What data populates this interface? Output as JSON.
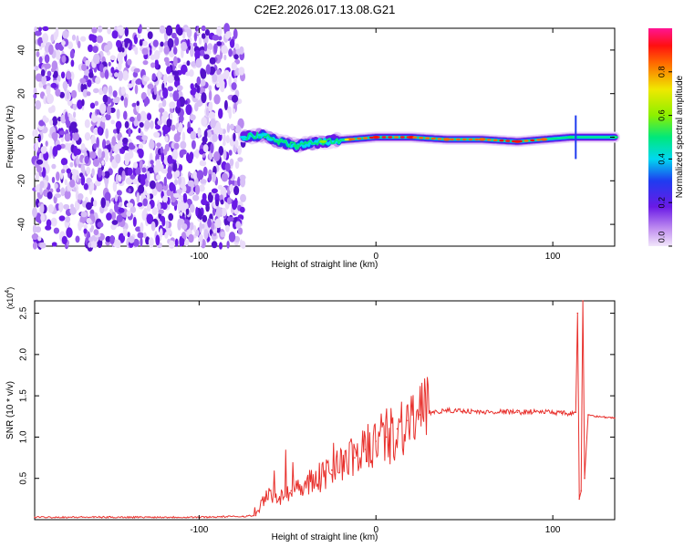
{
  "figure_title": "C2E2.2026.017.13.08.G21",
  "chart_data": [
    {
      "type": "heatmap",
      "xlabel": "Height of straight line (km)",
      "ylabel": "Frequency (Hz)",
      "xlim": [
        -193,
        135
      ],
      "ylim": [
        -50,
        50
      ],
      "x_ticks": [
        -100,
        0,
        100
      ],
      "y_ticks": [
        -40,
        -20,
        0,
        20,
        40
      ],
      "colorbar": {
        "label": "Normalized spectral amplitude",
        "range": [
          0,
          1
        ],
        "ticks": [
          0.0,
          0.2,
          0.4,
          0.6,
          0.8
        ],
        "tick_labels": [
          "0.0",
          "0.2",
          "0.4",
          "0.6",
          "0.8"
        ]
      },
      "noise_region_x": [
        -193,
        -75
      ],
      "carrier_track": [
        {
          "x": -75,
          "freq": 0,
          "amp": 0.35
        },
        {
          "x": -65,
          "freq": 1,
          "amp": 0.4
        },
        {
          "x": -55,
          "freq": -2,
          "amp": 0.45
        },
        {
          "x": -45,
          "freq": -4,
          "amp": 0.5
        },
        {
          "x": -30,
          "freq": -2,
          "amp": 0.6
        },
        {
          "x": -15,
          "freq": -1,
          "amp": 0.75
        },
        {
          "x": 0,
          "freq": 0,
          "amp": 0.85
        },
        {
          "x": 20,
          "freq": 0,
          "amp": 0.85
        },
        {
          "x": 40,
          "freq": -1,
          "amp": 0.75
        },
        {
          "x": 60,
          "freq": -1,
          "amp": 0.8
        },
        {
          "x": 80,
          "freq": -2,
          "amp": 0.9
        },
        {
          "x": 95,
          "freq": -1,
          "amp": 0.75
        },
        {
          "x": 110,
          "freq": 0,
          "amp": 0.5
        },
        {
          "x": 135,
          "freq": 0,
          "amp": 0.45
        }
      ]
    },
    {
      "type": "line",
      "xlabel": "Height of straight line (km)",
      "ylabel": "SNR (10 * v/v)",
      "y_multiplier_label": "(x10",
      "y_multiplier_exp": "4",
      "y_multiplier_close": ")",
      "xlim": [
        -193,
        135
      ],
      "ylim": [
        0,
        2.65
      ],
      "x_ticks": [
        -100,
        0,
        100
      ],
      "y_ticks": [
        0.5,
        1.0,
        1.5,
        2.0,
        2.5
      ],
      "y_tick_labels": [
        "0.5",
        "1.0",
        "1.5",
        "2.0",
        "2.5"
      ],
      "series": [
        {
          "color": "#e8312d",
          "x": [
            -193,
            -150,
            -100,
            -75,
            -68,
            -62,
            -55,
            -48,
            -40,
            -32,
            -25,
            -18,
            -12,
            -6,
            0,
            6,
            12,
            18,
            25,
            32,
            40,
            50,
            60,
            70,
            80,
            90,
            100,
            105,
            110,
            113,
            114,
            115,
            116,
            117,
            118,
            120,
            125,
            130,
            135
          ],
          "y": [
            0.03,
            0.03,
            0.03,
            0.04,
            0.05,
            0.3,
            0.25,
            0.35,
            0.45,
            0.5,
            0.6,
            0.7,
            0.75,
            0.85,
            0.95,
            1.0,
            1.1,
            1.2,
            1.27,
            1.3,
            1.32,
            1.32,
            1.3,
            1.31,
            1.3,
            1.31,
            1.3,
            1.29,
            1.28,
            1.3,
            2.5,
            0.25,
            0.35,
            2.65,
            0.5,
            1.27,
            1.25,
            1.24,
            1.23
          ]
        }
      ]
    }
  ]
}
